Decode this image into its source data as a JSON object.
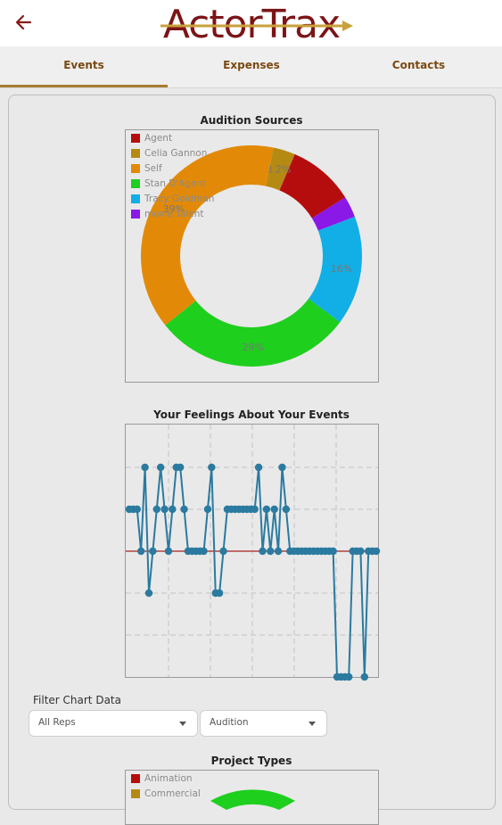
{
  "app": {
    "logo_text": "ActorTrax"
  },
  "tabs": [
    {
      "label": "Events"
    },
    {
      "label": "Expenses"
    },
    {
      "label": "Contacts"
    }
  ],
  "colors": {
    "accent": "#a87d33",
    "tab_text": "#7a4a12",
    "logo": "#7b1416",
    "line": "#2b7a9f",
    "zero_line": "#b34040"
  },
  "filter": {
    "label": "Filter Chart Data",
    "reps_value": "All Reps",
    "type_value": "Audition"
  },
  "chart_data": [
    {
      "type": "pie",
      "title": "Audition Sources",
      "donut": true,
      "legend_position": "top-left",
      "categories": [
        "Agent",
        "Celia Gannon",
        "Self",
        "Stan D'Agent",
        "Tracy Goldman",
        "moxie Talent"
      ],
      "colors": [
        "#b50d0d",
        "#b58a12",
        "#e28a07",
        "#1ecf1e",
        "#12aee6",
        "#8a18e6"
      ],
      "values": [
        9.7,
        3.2,
        39,
        29,
        16,
        3.1
      ],
      "labels": [
        "",
        "3.2%",
        "39%",
        "29%",
        "16%",
        ""
      ]
    },
    {
      "type": "line",
      "title": "Your Feelings About Your Events",
      "grid": true,
      "values": [
        1,
        1,
        1,
        0,
        2,
        -1,
        0,
        1,
        2,
        1,
        0,
        1,
        2,
        2,
        1,
        0,
        0,
        0,
        0,
        0,
        1,
        2,
        -1,
        -1,
        0,
        1,
        1,
        1,
        1,
        1,
        1,
        1,
        1,
        2,
        0,
        1,
        0,
        1,
        0,
        2,
        1,
        0,
        0,
        0,
        0,
        0,
        0,
        0,
        0,
        0,
        0,
        0,
        0,
        -3,
        -3,
        -3,
        -3,
        0,
        0,
        0,
        -3,
        0,
        0,
        0
      ]
    },
    {
      "type": "pie",
      "title": "Project Types",
      "donut": true,
      "legend_position": "top-left",
      "categories": [
        "Animation",
        "Commercial"
      ],
      "colors": [
        "#b50d0d",
        "#b58a12"
      ]
    }
  ]
}
